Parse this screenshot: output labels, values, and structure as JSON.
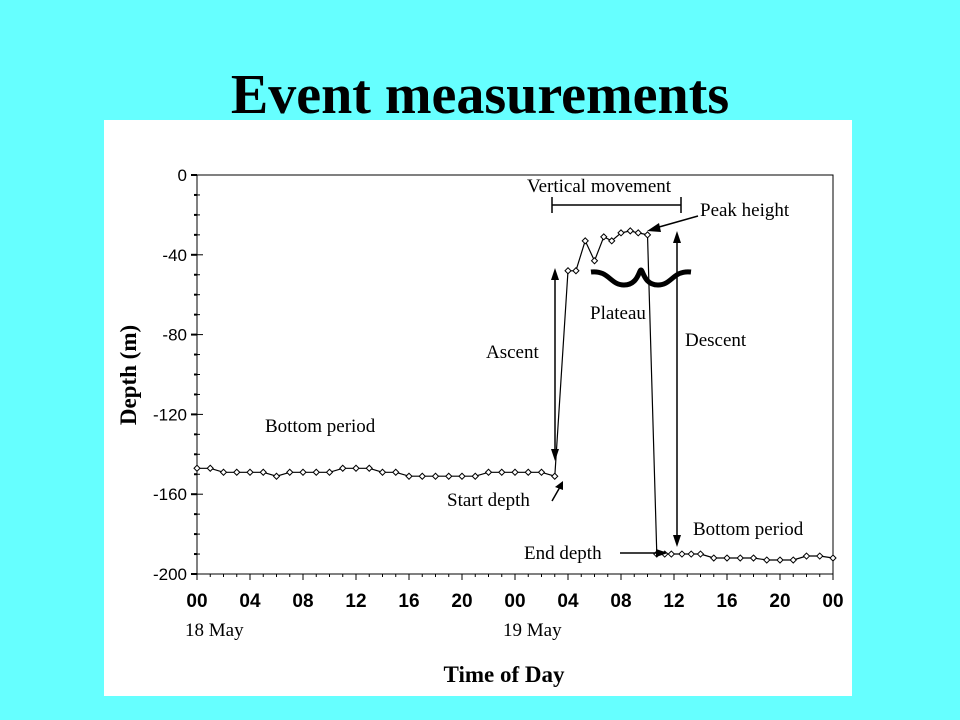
{
  "slide": {
    "title": "Event measurements"
  },
  "chart_data": {
    "type": "line",
    "xlabel": "Time of Day",
    "ylabel": "Depth (m)",
    "ylim": [
      -200,
      0
    ],
    "xlim": [
      0,
      48
    ],
    "y_ticks": [
      "0",
      "-40",
      "-80",
      "-120",
      "-160",
      "-200"
    ],
    "y_tick_values": [
      0,
      -40,
      -80,
      -120,
      -160,
      -200
    ],
    "x_ticks": [
      "00",
      "04",
      "08",
      "12",
      "16",
      "20",
      "00",
      "04",
      "08",
      "12",
      "16",
      "20",
      "00"
    ],
    "x_tick_values": [
      0,
      4,
      8,
      12,
      16,
      20,
      24,
      28,
      32,
      36,
      40,
      44,
      48
    ],
    "date_labels": [
      {
        "text": "18 May",
        "x": 0
      },
      {
        "text": "19 May",
        "x": 24
      }
    ],
    "marker": "open-diamond",
    "grid": false,
    "series": [
      {
        "x": [
          0,
          1,
          2,
          3,
          4,
          5,
          6,
          7,
          8,
          9,
          10,
          11,
          12,
          13,
          14,
          15,
          16,
          17,
          18,
          19,
          20,
          21,
          22,
          23,
          24,
          25,
          26,
          27,
          28,
          28.6,
          29.3,
          30,
          30.7,
          31.3,
          32,
          32.7,
          33.3,
          34,
          34.7,
          35.3,
          35.8,
          36.6,
          37.3,
          38,
          39,
          40,
          41,
          42,
          43,
          44,
          45,
          46,
          47,
          48
        ],
        "y": [
          -147,
          -147,
          -149,
          -149,
          -149,
          -149,
          -151,
          -149,
          -149,
          -149,
          -149,
          -147,
          -147,
          -147,
          -149,
          -149,
          -151,
          -151,
          -151,
          -151,
          -151,
          -151,
          -149,
          -149,
          -149,
          -149,
          -149,
          -151,
          -48,
          -48,
          -33,
          -43,
          -31,
          -33,
          -29,
          -28,
          -29,
          -30,
          -190,
          -190,
          -190,
          -190,
          -190,
          -190,
          -192,
          -192,
          -192,
          -192,
          -193,
          -193,
          -193,
          -191,
          -191,
          -192
        ]
      }
    ],
    "annotations": {
      "vertical_movement": "Vertical movement",
      "peak_height": "Peak height",
      "plateau": "Plateau",
      "ascent": "Ascent",
      "descent": "Descent",
      "bottom_period_1": "Bottom period",
      "bottom_period_2": "Bottom period",
      "start_depth": "Start depth",
      "end_depth": "End depth"
    }
  }
}
